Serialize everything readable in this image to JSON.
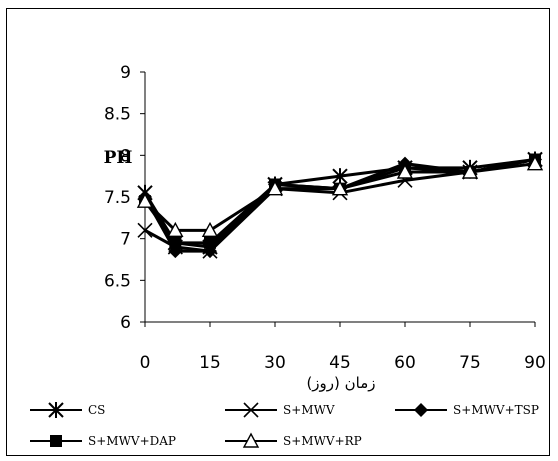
{
  "chart_data": {
    "type": "line",
    "title": "",
    "xlabel": "زمان (روز)",
    "ylabel": "PH",
    "x": [
      0,
      7,
      15,
      30,
      45,
      60,
      75,
      90
    ],
    "x_tick_values": [
      0,
      15,
      30,
      45,
      60,
      75,
      90
    ],
    "x_tick_labels": [
      "0",
      "15",
      "30",
      "45",
      "60",
      "75",
      "90"
    ],
    "ylim": [
      6,
      9
    ],
    "y_ticks": [
      "6",
      "6.5",
      "7",
      "7.5",
      "8",
      "8.5",
      "9"
    ],
    "grid": false,
    "legend_position": "bottom",
    "series": [
      {
        "name": "CS",
        "marker": "asterisk",
        "values": [
          7.55,
          6.95,
          6.9,
          7.65,
          7.75,
          7.85,
          7.85,
          7.95
        ]
      },
      {
        "name": "S+MWV",
        "marker": "x",
        "values": [
          7.1,
          6.9,
          6.85,
          7.6,
          7.55,
          7.7,
          7.8,
          7.95
        ]
      },
      {
        "name": "S+MWV+TSP",
        "marker": "diamond",
        "values": [
          7.5,
          6.85,
          6.85,
          7.65,
          7.6,
          7.9,
          7.8,
          7.95
        ]
      },
      {
        "name": "S+MWV+DAP",
        "marker": "square",
        "values": [
          7.45,
          6.95,
          6.95,
          7.65,
          7.6,
          7.85,
          7.8,
          7.95
        ]
      },
      {
        "name": "S+MWV+RP",
        "marker": "triangle",
        "values": [
          7.45,
          7.1,
          7.1,
          7.6,
          7.6,
          7.8,
          7.8,
          7.9
        ]
      }
    ]
  }
}
